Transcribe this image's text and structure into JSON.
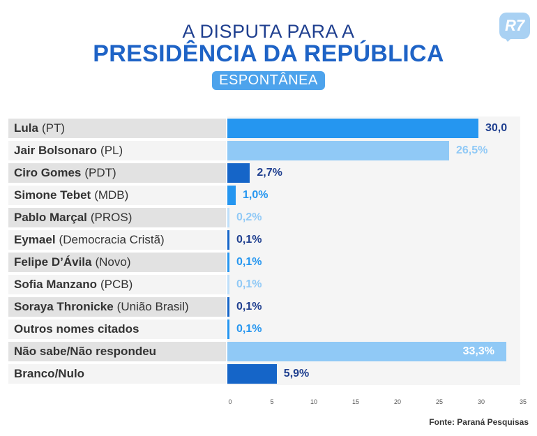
{
  "header": {
    "title_line1": "A DISPUTA PARA A",
    "title_line2": "PRESIDÊNCIA DA REPÚBLICA",
    "subtitle": "ESPONTÂNEA",
    "logo_text": "R7"
  },
  "colors": {
    "dark_blue": "#1565c8",
    "mid_blue": "#2596f0",
    "light_blue": "#90c9f6",
    "pale_blue": "#bedffa"
  },
  "chart_data": {
    "type": "bar",
    "orientation": "horizontal",
    "categories": [
      {
        "name": "Lula",
        "party": "(PT)"
      },
      {
        "name": "Jair Bolsonaro",
        "party": "(PL)"
      },
      {
        "name": "Ciro Gomes",
        "party": "(PDT)"
      },
      {
        "name": "Simone Tebet",
        "party": "(MDB)"
      },
      {
        "name": "Pablo Marçal",
        "party": "(PROS)"
      },
      {
        "name": "Eymael",
        "party": "(Democracia Cristã)"
      },
      {
        "name": "Felipe D’Ávila",
        "party": "(Novo)"
      },
      {
        "name": "Sofia Manzano",
        "party": "(PCB)"
      },
      {
        "name": "Soraya Thronicke",
        "party": "(União Brasil)"
      },
      {
        "name": "Outros nomes citados",
        "party": ""
      },
      {
        "name": "Não sabe/Não respondeu",
        "party": ""
      },
      {
        "name": "Branco/Nulo",
        "party": ""
      }
    ],
    "values": [
      30.0,
      26.5,
      2.7,
      1.0,
      0.2,
      0.1,
      0.1,
      0.1,
      0.1,
      0.1,
      33.3,
      5.9
    ],
    "value_labels": [
      "30,0",
      "26,5%",
      "2,7%",
      "1,0%",
      "0,2%",
      "0,1%",
      "0,1%",
      "0,1%",
      "0,1%",
      "0,1%",
      "33,3%",
      "5,9%"
    ],
    "bar_colors": [
      "#2596f0",
      "#90c9f6",
      "#1565c8",
      "#2596f0",
      "#bedffa",
      "#1565c8",
      "#2596f0",
      "#bedffa",
      "#1565c8",
      "#2596f0",
      "#90c9f6",
      "#1565c8"
    ],
    "label_colors": [
      "#1f3f8f",
      "#90c9f6",
      "#1f3f8f",
      "#2596f0",
      "#90c9f6",
      "#1f3f8f",
      "#2596f0",
      "#90c9f6",
      "#1f3f8f",
      "#2596f0",
      "#ffffff",
      "#1f3f8f"
    ],
    "xlim": [
      0,
      35
    ],
    "xticks": [
      0,
      5,
      10,
      15,
      20,
      25,
      30,
      35
    ],
    "grid": false
  },
  "source": "Fonte: Paraná Pesquisas"
}
